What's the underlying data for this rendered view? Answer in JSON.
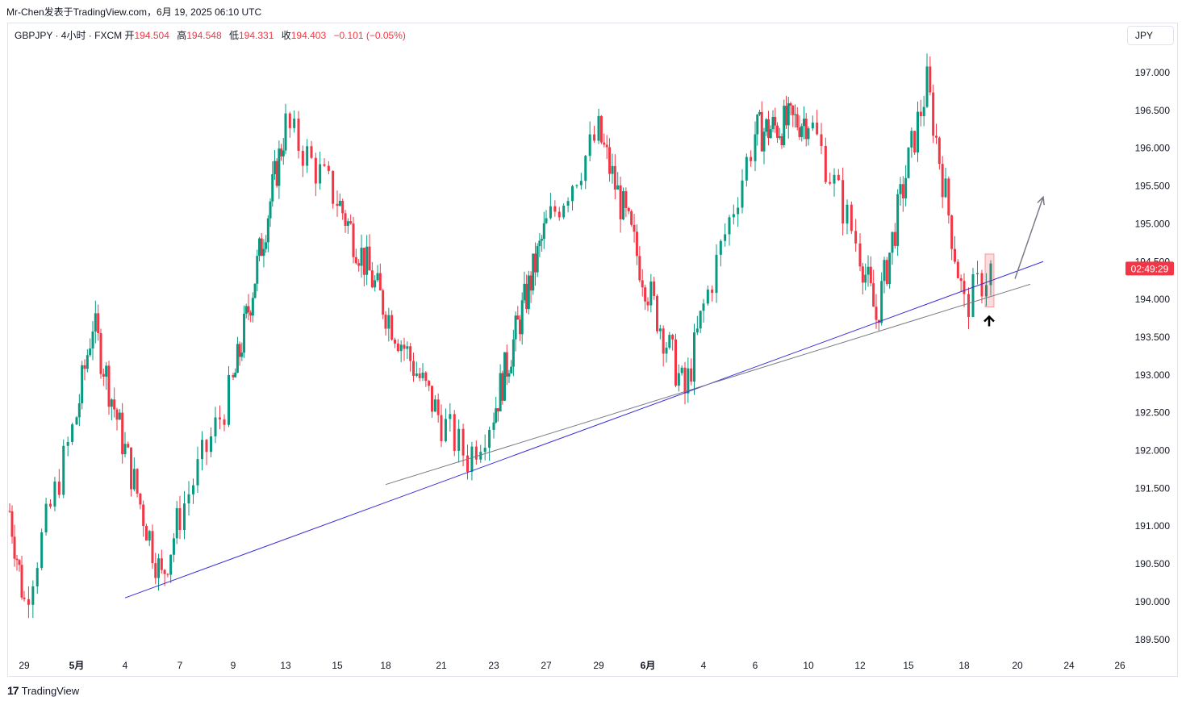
{
  "header": {
    "publisher_line": "Mr-Chen发表于TradingView.com，6月 19, 2025 06:10 UTC"
  },
  "legend": {
    "symbol_line": "GBPJPY · 4小时 · FXCM",
    "open_label": "开",
    "open": "194.504",
    "high_label": "高",
    "high": "194.548",
    "low_label": "低",
    "low": "194.331",
    "close_label": "收",
    "close": "194.403",
    "change": "−0.101 (−0.05%)"
  },
  "currency_button": "JPY",
  "countdown": "02:49:29",
  "footer": {
    "brand": "TradingView"
  },
  "colors": {
    "up": "#089981",
    "down": "#f23645",
    "trendline_main": "#3b2fd9",
    "trendline_secondary": "#787b86",
    "arrow": "#787b86"
  },
  "chart_data": {
    "type": "candlestick",
    "title": "GBPJPY · 4小时 · FXCM",
    "ylim": [
      189.3,
      197.4
    ],
    "y_ticks": [
      "197.000",
      "196.500",
      "196.000",
      "195.500",
      "195.000",
      "194.500",
      "194.000",
      "193.500",
      "193.000",
      "192.500",
      "192.000",
      "191.500",
      "191.000",
      "190.500",
      "190.000",
      "189.500"
    ],
    "x_ticks": [
      "29",
      "5月",
      "4",
      "7",
      "9",
      "13",
      "15",
      "18",
      "21",
      "23",
      "27",
      "29",
      "6月",
      "4",
      "6",
      "10",
      "12",
      "15",
      "18",
      "20",
      "24",
      "26"
    ],
    "last_price_label": "02:49:29",
    "swing_points": [
      {
        "date": "Apr 28",
        "price": 191.2
      },
      {
        "date": "Apr 29",
        "price": 190.0
      },
      {
        "date": "May 2",
        "price": 193.7
      },
      {
        "date": "May 6",
        "price": 190.3
      },
      {
        "date": "May 13",
        "price": 196.3
      },
      {
        "date": "May 22",
        "price": 191.9
      },
      {
        "date": "May 29",
        "price": 196.2
      },
      {
        "date": "Jun 3",
        "price": 192.75
      },
      {
        "date": "Jun 6",
        "price": 196.2
      },
      {
        "date": "Jun 10",
        "price": 196.4
      },
      {
        "date": "Jun 13",
        "price": 193.75
      },
      {
        "date": "Jun 16",
        "price": 196.85
      },
      {
        "date": "Jun 18",
        "price": 193.9
      },
      {
        "date": "Jun 19",
        "price": 194.403
      }
    ],
    "trendlines": [
      {
        "name": "",
        "from": {
          "date": "May 4",
          "price": 190.05
        },
        "to": {
          "date": "Jun 22",
          "price": 194.5
        }
      },
      {
        "name": "",
        "from": {
          "date": "May 18",
          "price": 191.55
        },
        "to": {
          "date": "Jun 21",
          "price": 194.2
        }
      }
    ],
    "projection_arrow": {
      "from": {
        "date": "Jun 19",
        "price": 194.4
      },
      "to": {
        "date": "Jun 22",
        "price": 195.3
      }
    },
    "highlight_box": {
      "from_price": 193.9,
      "to_price": 194.6
    },
    "grid": false
  }
}
